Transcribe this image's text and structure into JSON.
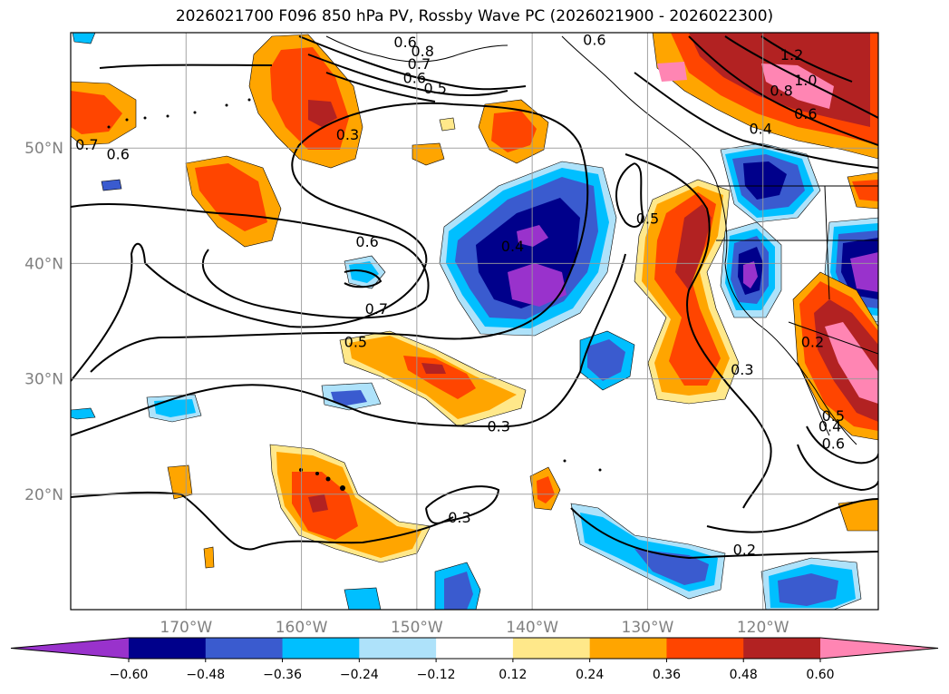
{
  "title": "2026021700 F096 850 hPa PV, Rossby Wave PC (2026021900 - 2026022300)",
  "map": {
    "lon_range": [
      -180,
      -110
    ],
    "lat_range": [
      10,
      60
    ],
    "lat_ticks": [
      {
        "value": 20,
        "label": "20°N"
      },
      {
        "value": 30,
        "label": "30°N"
      },
      {
        "value": 40,
        "label": "40°N"
      },
      {
        "value": 50,
        "label": "50°N"
      }
    ],
    "lon_ticks": [
      {
        "value": -170,
        "label": "170°W"
      },
      {
        "value": -160,
        "label": "160°W"
      },
      {
        "value": -150,
        "label": "150°W"
      },
      {
        "value": -140,
        "label": "140°W"
      },
      {
        "value": -130,
        "label": "130°W"
      },
      {
        "value": -120,
        "label": "120°W"
      }
    ]
  },
  "colorbar": {
    "colors": [
      "#9932cc",
      "#00008b",
      "#3a5bcf",
      "#00bfff",
      "#aee2fa",
      "#ffffff",
      "#ffe88a",
      "#ffa500",
      "#ff4500",
      "#b22222",
      "#ff85b3"
    ],
    "labels": [
      "−0.60",
      "−0.48",
      "−0.36",
      "−0.24",
      "−0.12",
      "0.12",
      "0.24",
      "0.36",
      "0.48",
      "0.60"
    ]
  },
  "contour_labels": [
    {
      "text": "0.8",
      "lon": -149.5,
      "lat": 58.1
    },
    {
      "text": "0.7",
      "lon": -149.8,
      "lat": 57.0
    },
    {
      "text": "0.6",
      "lon": -150.2,
      "lat": 55.8
    },
    {
      "text": "0.5",
      "lon": -148.4,
      "lat": 54.9
    },
    {
      "text": "0.6",
      "lon": -134.6,
      "lat": 59.1
    },
    {
      "text": "1.2",
      "lon": -117.5,
      "lat": 57.8
    },
    {
      "text": "1.0",
      "lon": -116.3,
      "lat": 55.6
    },
    {
      "text": "0.8",
      "lon": -118.4,
      "lat": 54.7
    },
    {
      "text": "0.6",
      "lon": -116.3,
      "lat": 52.7
    },
    {
      "text": "0.4",
      "lon": -120.2,
      "lat": 51.4
    },
    {
      "text": "0.3",
      "lon": -156.0,
      "lat": 50.9
    },
    {
      "text": "0.7",
      "lon": -178.6,
      "lat": 50.0
    },
    {
      "text": "0.6",
      "lon": -175.9,
      "lat": 49.2
    },
    {
      "text": "0.5",
      "lon": -130.0,
      "lat": 43.6
    },
    {
      "text": "0.6",
      "lon": -154.3,
      "lat": 41.6
    },
    {
      "text": "0.4",
      "lon": -141.7,
      "lat": 41.2
    },
    {
      "text": "0.7",
      "lon": -153.5,
      "lat": 35.8
    },
    {
      "text": "0.5",
      "lon": -155.3,
      "lat": 32.9
    },
    {
      "text": "0.3",
      "lon": -121.8,
      "lat": 30.5
    },
    {
      "text": "0.3",
      "lon": -142.9,
      "lat": 25.6
    },
    {
      "text": "0.2",
      "lon": -115.7,
      "lat": 32.9
    },
    {
      "text": "0.5",
      "lon": -113.9,
      "lat": 26.5
    },
    {
      "text": "0.4",
      "lon": -114.2,
      "lat": 25.6
    },
    {
      "text": "0.6",
      "lon": -113.9,
      "lat": 24.1
    },
    {
      "text": "0.3",
      "lon": -146.3,
      "lat": 17.7
    },
    {
      "text": "0.2",
      "lon": -121.6,
      "lat": 14.9
    },
    {
      "text": "0.6",
      "lon": -151.0,
      "lat": 58.9
    }
  ]
}
